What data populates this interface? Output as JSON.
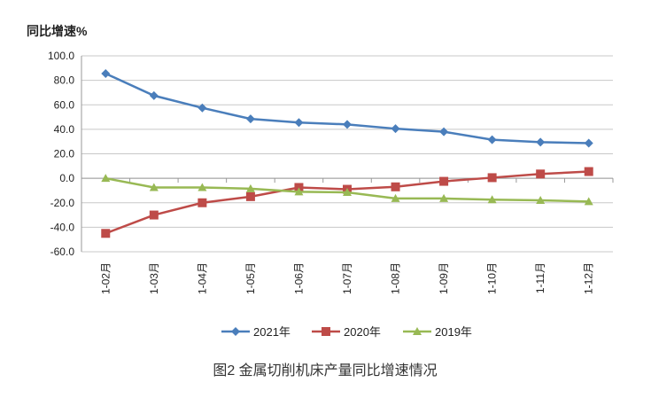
{
  "chart_data": {
    "type": "line",
    "title": "图2 金属切削机床产量同比增速情况",
    "ylabel": "同比增速%",
    "xlabel": "",
    "ylim": [
      -60,
      100
    ],
    "yticks": [
      "100.0",
      "80.0",
      "60.0",
      "40.0",
      "20.0",
      "0.0",
      "-20.0",
      "-40.0",
      "-60.0"
    ],
    "grid": true,
    "legend": "bottom",
    "categories": [
      "1-02月",
      "1-03月",
      "1-04月",
      "1-05月",
      "1-06月",
      "1-07月",
      "1-08月",
      "1-09月",
      "1-10月",
      "1-11月",
      "1-12月"
    ],
    "series": [
      {
        "name": "2021年",
        "color": "#4a7ebb",
        "marker": "diamond",
        "values": [
          85.5,
          67.5,
          57.5,
          48.5,
          45.5,
          44,
          40.5,
          38,
          31.5,
          29.5,
          28.7
        ]
      },
      {
        "name": "2020年",
        "color": "#be4b48",
        "marker": "square",
        "values": [
          -45,
          -30,
          -20,
          -15,
          -7.5,
          -9,
          -7,
          -2.5,
          0.5,
          3.5,
          5.5
        ]
      },
      {
        "name": "2019年",
        "color": "#98b954",
        "marker": "triangle",
        "values": [
          0,
          -7.5,
          -7.5,
          -8.5,
          -11,
          -11.5,
          -16.5,
          -16.5,
          -17.5,
          -18,
          -19
        ]
      }
    ]
  }
}
